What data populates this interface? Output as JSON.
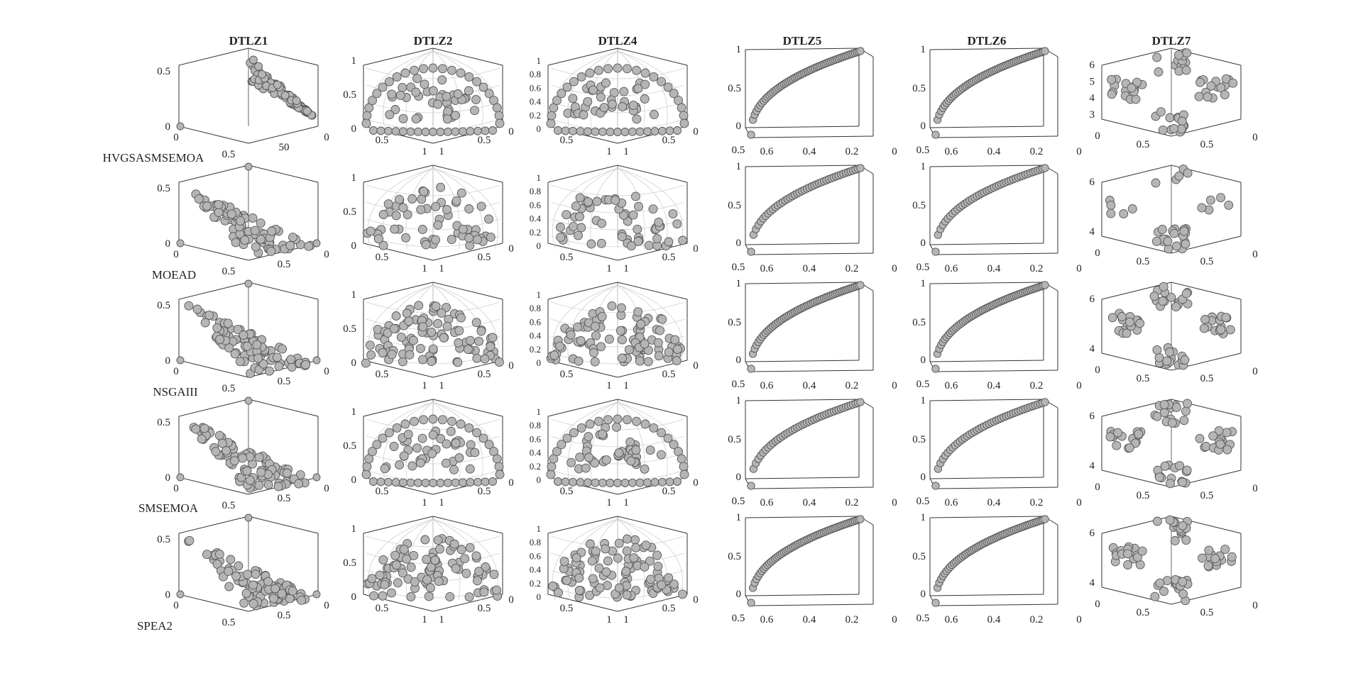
{
  "figure": {
    "columns": [
      {
        "title": "DTLZ1",
        "kind": "3d",
        "labels": {
          "z_top": "0.5",
          "z_bot": "0",
          "x_left": "0",
          "x_mid": "0.5",
          "y_mid": "0.5",
          "y_right": "0"
        }
      },
      {
        "title": "DTLZ2",
        "kind": "3d-sphere",
        "labels": {
          "z_ticks": [
            "1",
            "0.5",
            "0"
          ],
          "x_mid": "0.5",
          "x_end": "1",
          "y_end": "1",
          "y_mid": "0.5",
          "y_right": "0"
        }
      },
      {
        "title": "DTLZ4",
        "kind": "3d-sphere",
        "labels": {
          "z_ticks": [
            "1",
            "0.8",
            "0.6",
            "0.4",
            "0.2",
            "0"
          ],
          "x_mid": "0.5",
          "x_end": "1",
          "y_end": "1",
          "y_mid": "0.5",
          "y_right": "0"
        }
      },
      {
        "title": "DTLZ5",
        "kind": "curve",
        "labels": {
          "y_ticks": [
            "1",
            "0.5",
            "0"
          ],
          "x_ticks": [
            "0.6",
            "0.4",
            "0.2",
            "0"
          ],
          "x_corner": "0.5"
        }
      },
      {
        "title": "DTLZ6",
        "kind": "curve",
        "labels": {
          "y_ticks": [
            "1",
            "0.5",
            "0"
          ],
          "x_ticks": [
            "0.6",
            "0.4",
            "0.2",
            "0"
          ],
          "x_corner": "0.5"
        }
      },
      {
        "title": "DTLZ7",
        "kind": "disconnected",
        "labels": {
          "z_ticks_first": [
            "6",
            "5",
            "4",
            "3"
          ],
          "z_ticks": [
            "6",
            "4"
          ],
          "x_left": "0",
          "x_mid": "0.5",
          "y_mid": "0.5",
          "y_right": "0"
        }
      }
    ],
    "rows": [
      {
        "label": "HVGSASMSEMOA",
        "dtlz1_labels": {
          "y_mid": "50"
        }
      },
      {
        "label": "MOEAD"
      },
      {
        "label": "NSGAIII"
      },
      {
        "label": "SMSEMOA"
      },
      {
        "label": "SPEA2"
      }
    ],
    "colors": {
      "marker_fill": "#b5b5b5",
      "marker_edge": "#555555",
      "axis": "#333333",
      "grid": "#d0d0d0"
    }
  },
  "chart_data": {
    "type": "scatter",
    "description_of_grid": "5 algorithms x 6 DTLZ test problems, Pareto front approximations",
    "columns": [
      "DTLZ1",
      "DTLZ2",
      "DTLZ4",
      "DTLZ5",
      "DTLZ6",
      "DTLZ7"
    ],
    "rows": [
      "HVGSASMSEMOA",
      "MOEAD",
      "NSGAIII",
      "SMSEMOA",
      "SPEA2"
    ],
    "axes": {
      "DTLZ1": {
        "zlim": [
          0,
          0.5
        ],
        "xlim": [
          0,
          0.5
        ],
        "ylim": [
          0,
          0.5
        ]
      },
      "DTLZ2": {
        "zlim": [
          0,
          1
        ],
        "xlim": [
          0,
          1
        ],
        "ylim": [
          0,
          1
        ]
      },
      "DTLZ4": {
        "zlim": [
          0,
          1
        ],
        "xlim": [
          0,
          1
        ],
        "ylim": [
          0,
          1
        ]
      },
      "DTLZ5": {
        "ylim": [
          0,
          1
        ],
        "xlim": [
          0,
          0.7
        ]
      },
      "DTLZ6": {
        "ylim": [
          0,
          1
        ],
        "xlim": [
          0,
          0.7
        ]
      },
      "DTLZ7": {
        "zlim": [
          3,
          6
        ],
        "xlim": [
          0,
          1
        ],
        "ylim": [
          0,
          1
        ]
      }
    }
  }
}
